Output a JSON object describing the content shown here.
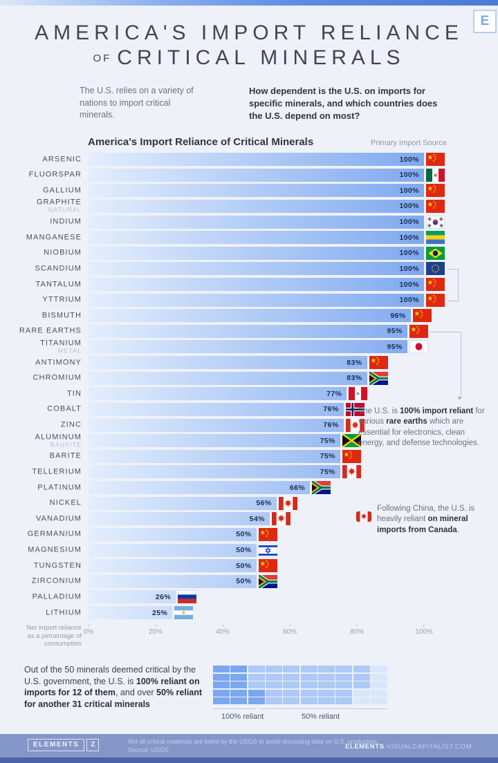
{
  "header": {
    "logo_letter": "E",
    "title_line1": "AMERICA'S IMPORT RELIANCE",
    "title_of": "OF",
    "title_line2": "CRITICAL MINERALS",
    "intro_left": "The U.S. relies on a variety of nations to import critical minerals.",
    "intro_right": "How dependent is the U.S. on imports for specific minerals, and which countries does the U.S. depend on most?"
  },
  "chart": {
    "title": "America's Import Reliance of Critical Minerals",
    "source_label": "Primary Import Source",
    "axis_caption_lines": [
      "Net import reliance",
      "as a percentage of",
      "consumption"
    ],
    "ticks": [
      "0%",
      "20%",
      "40%",
      "60%",
      "80%",
      "100%"
    ]
  },
  "chart_data": [
    {
      "type": "bar",
      "title": "America's Import Reliance of Critical Minerals",
      "xlabel": "Net import reliance as a percentage of consumption",
      "xlim": [
        0,
        100
      ],
      "unit": "%",
      "legend_note": "Primary Import Source",
      "rows": [
        {
          "mineral": "ARSENIC",
          "sub": "",
          "value": 100,
          "source": "China",
          "flag": "china"
        },
        {
          "mineral": "FLUORSPAR",
          "sub": "",
          "value": 100,
          "source": "Mexico",
          "flag": "mexico"
        },
        {
          "mineral": "GALLIUM",
          "sub": "",
          "value": 100,
          "source": "China",
          "flag": "china"
        },
        {
          "mineral": "GRAPHITE",
          "sub": "NATURAL",
          "value": 100,
          "source": "China",
          "flag": "china"
        },
        {
          "mineral": "INDIUM",
          "sub": "",
          "value": 100,
          "source": "South Korea",
          "flag": "south-korea"
        },
        {
          "mineral": "MANGANESE",
          "sub": "",
          "value": 100,
          "source": "Gabon",
          "flag": "gabon"
        },
        {
          "mineral": "NIOBIUM",
          "sub": "",
          "value": 100,
          "source": "Brazil",
          "flag": "brazil"
        },
        {
          "mineral": "SCANDIUM",
          "sub": "",
          "value": 100,
          "source": "European Union",
          "flag": "eu"
        },
        {
          "mineral": "TANTALUM",
          "sub": "",
          "value": 100,
          "source": "China",
          "flag": "china"
        },
        {
          "mineral": "YTTRIUM",
          "sub": "",
          "value": 100,
          "source": "China",
          "flag": "china"
        },
        {
          "mineral": "BISMUTH",
          "sub": "",
          "value": 96,
          "source": "China",
          "flag": "china"
        },
        {
          "mineral": "RARE EARTHS",
          "sub": "",
          "value": 95,
          "source": "China",
          "flag": "china"
        },
        {
          "mineral": "TITANIUM",
          "sub": "METAL",
          "value": 95,
          "source": "Japan",
          "flag": "japan"
        },
        {
          "mineral": "ANTIMONY",
          "sub": "",
          "value": 83,
          "source": "China",
          "flag": "china"
        },
        {
          "mineral": "CHROMIUM",
          "sub": "",
          "value": 83,
          "source": "South Africa",
          "flag": "south-africa"
        },
        {
          "mineral": "TIN",
          "sub": "",
          "value": 77,
          "source": "Peru",
          "flag": "peru"
        },
        {
          "mineral": "COBALT",
          "sub": "",
          "value": 76,
          "source": "Norway",
          "flag": "norway"
        },
        {
          "mineral": "ZINC",
          "sub": "",
          "value": 76,
          "source": "Canada",
          "flag": "canada"
        },
        {
          "mineral": "ALUMINUM",
          "sub": "BAUXITE",
          "value": 75,
          "source": "Jamaica",
          "flag": "jamaica"
        },
        {
          "mineral": "BARITE",
          "sub": "",
          "value": 75,
          "source": "China",
          "flag": "china"
        },
        {
          "mineral": "TELLERIUM",
          "sub": "",
          "value": 75,
          "source": "Canada",
          "flag": "canada"
        },
        {
          "mineral": "PLATINUM",
          "sub": "",
          "value": 66,
          "source": "South Africa",
          "flag": "south-africa"
        },
        {
          "mineral": "NICKEL",
          "sub": "",
          "value": 56,
          "source": "Canada",
          "flag": "canada"
        },
        {
          "mineral": "VANADIUM",
          "sub": "",
          "value": 54,
          "source": "Canada",
          "flag": "canada"
        },
        {
          "mineral": "GERMANIUM",
          "sub": "",
          "value": 50,
          "source": "China",
          "flag": "china"
        },
        {
          "mineral": "MAGNESIUM",
          "sub": "",
          "value": 50,
          "source": "Israel",
          "flag": "israel"
        },
        {
          "mineral": "TUNGSTEN",
          "sub": "",
          "value": 50,
          "source": "China",
          "flag": "china"
        },
        {
          "mineral": "ZIRCONIUM",
          "sub": "",
          "value": 50,
          "source": "South Africa",
          "flag": "south-africa"
        },
        {
          "mineral": "PALLADIUM",
          "sub": "",
          "value": 26,
          "source": "Russia",
          "flag": "russia"
        },
        {
          "mineral": "LITHIUM",
          "sub": "",
          "value": 25,
          "source": "Argentina",
          "flag": "argentina"
        }
      ]
    },
    {
      "type": "heatmap",
      "title": "Waffle of 50 critical minerals",
      "total": 50,
      "counts": {
        "reliant_100": 12,
        "reliant_50": 31,
        "other": 7
      },
      "legend": [
        "100% reliant",
        "50% reliant"
      ],
      "matrix": [
        "DDMMMMMMMP",
        "DDMMMMMMMP",
        "DDMMMMMMMP",
        "DDDMMMMMPP",
        "DDDMMMMMPP"
      ],
      "colors": {
        "D": "#7ba7ef",
        "M": "#adc9f5",
        "P": "#d9e7fb"
      }
    }
  ],
  "annotations": {
    "rare_earths": {
      "t1": "The U.S. is ",
      "b1": "100% import reliant",
      "t2": " for various ",
      "b2": "rare earths",
      "t3": " which are essential for electronics, clean energy, and defense technologies."
    },
    "canada": {
      "t1": "Following China, the U.S. is heavily reliant ",
      "b1": "on mineral imports from Canada",
      "t2": "."
    }
  },
  "bottom": {
    "t1": "Out of the 50 minerals deemed critical by the U.S. government, the U.S. is ",
    "b1": "100% reliant on imports for 12 of them",
    "t2": ", and over ",
    "b2": "50% reliant for another 31 critical minerals",
    "waffle_label_100": "100% reliant",
    "waffle_label_50": "50% reliant"
  },
  "footer": {
    "logo_text": "ELEMENTS",
    "logo_mark": "Z",
    "note_line1": "Not all critical materials are listed by the USGS to avoid disclosing data on U.S. production.",
    "note_line2": "Source: USGS",
    "site_bold": "ELEMENTS",
    "site_rest": ".VISUALCAPITALIST.COM"
  },
  "colors": {
    "bar_gradient_start": "#e3eefc",
    "bar_gradient_end": "#7fa9ef",
    "accent_navy": "#2c3342",
    "footer_bg": "#8596c8",
    "footer_strip": "#4b63a4"
  }
}
